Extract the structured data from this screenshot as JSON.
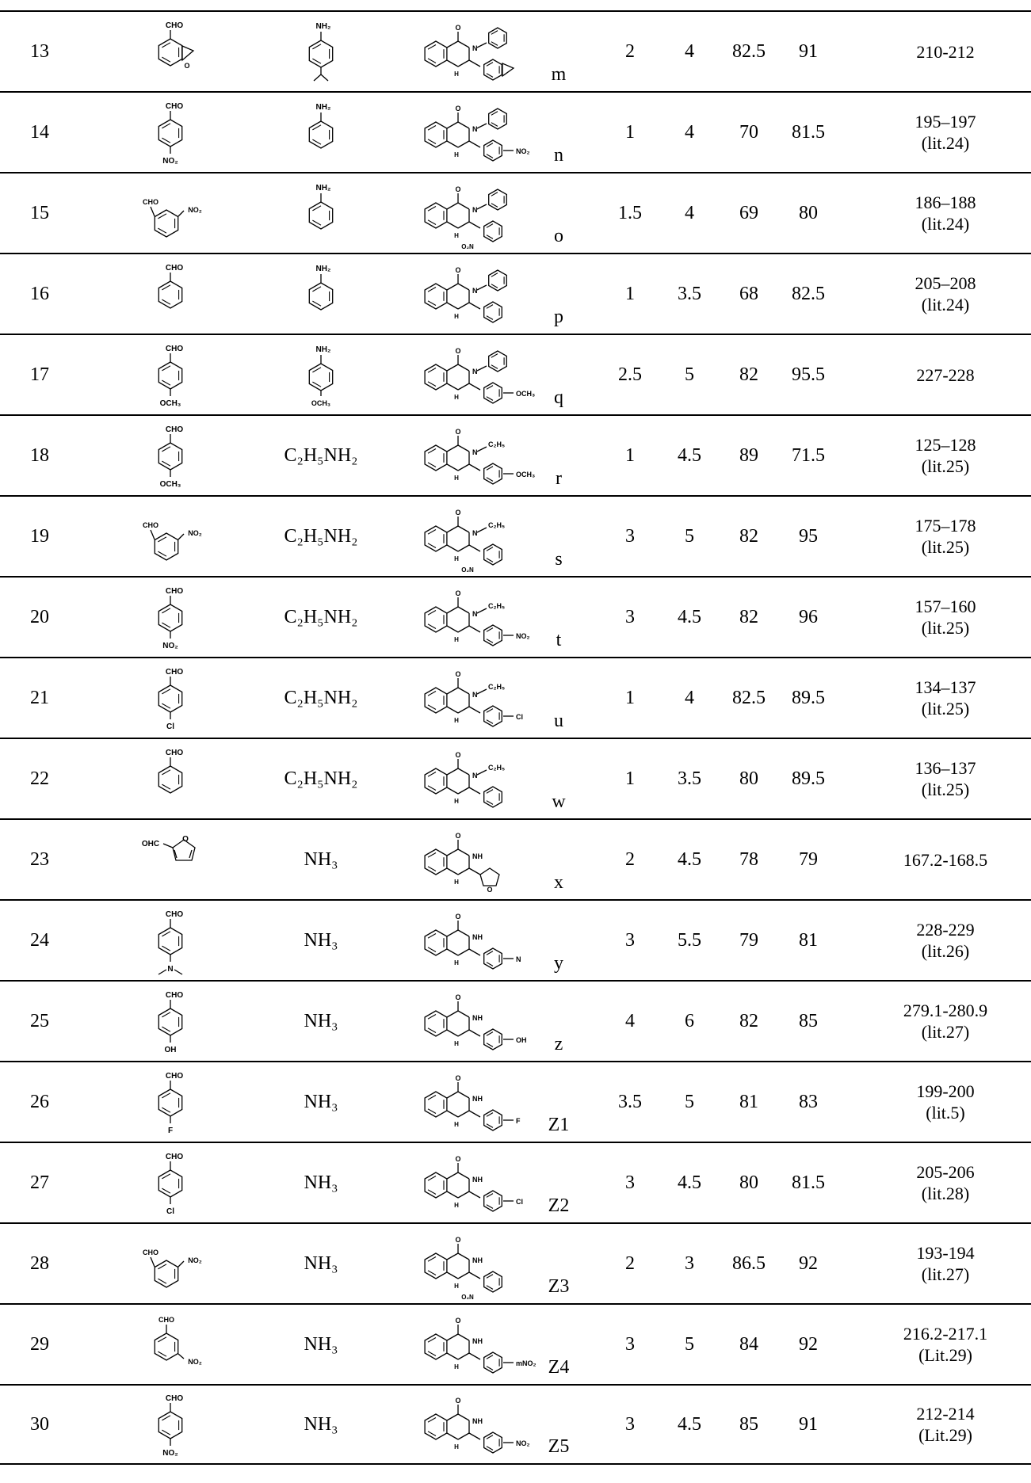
{
  "rows": [
    {
      "no": "13",
      "amine": "",
      "label": "m",
      "t1": "2",
      "t2": "4",
      "y1": "82.5",
      "y2": "91",
      "mp": "210-212",
      "lit": "",
      "ald_sub": "mdo",
      "ami_kind": "ipr",
      "prod_kind": "N-aryl",
      "prod_sub": "mdo"
    },
    {
      "no": "14",
      "amine": "",
      "label": "n",
      "t1": "1",
      "t2": "4",
      "y1": "70",
      "y2": "81.5",
      "mp": "195–197",
      "lit": "(lit.24)",
      "ald_sub": "NO₂",
      "ami_kind": "ph",
      "prod_kind": "N-aryl",
      "prod_sub": "NO₂"
    },
    {
      "no": "15",
      "amine": "",
      "label": "o",
      "t1": "1.5",
      "t2": "4",
      "y1": "69",
      "y2": "80",
      "mp": "186–188",
      "lit": "(lit.24)",
      "ald_sub": "oNO₂",
      "ami_kind": "ph",
      "prod_kind": "N-aryl",
      "prod_sub": "oNO₂"
    },
    {
      "no": "16",
      "amine": "",
      "label": "p",
      "t1": "1",
      "t2": "3.5",
      "y1": "68",
      "y2": "82.5",
      "mp": "205–208",
      "lit": "(lit.24)",
      "ald_sub": "",
      "ami_kind": "ph",
      "prod_kind": "N-aryl",
      "prod_sub": ""
    },
    {
      "no": "17",
      "amine": "",
      "label": "q",
      "t1": "2.5",
      "t2": "5",
      "y1": "82",
      "y2": "95.5",
      "mp": "227-228",
      "lit": "",
      "ald_sub": "OCH₃",
      "ami_kind": "ome",
      "prod_kind": "N-aryl",
      "prod_sub": "OCH₃"
    },
    {
      "no": "18",
      "amine": "C₂H₅NH₂",
      "label": "r",
      "t1": "1",
      "t2": "4.5",
      "y1": "89",
      "y2": "71.5",
      "mp": "125–128",
      "lit": "(lit.25)",
      "ald_sub": "OCH₃",
      "ami_kind": "",
      "prod_kind": "N-ethyl",
      "prod_sub": "OCH₃"
    },
    {
      "no": "19",
      "amine": "C₂H₅NH₂",
      "label": "s",
      "t1": "3",
      "t2": "5",
      "y1": "82",
      "y2": "95",
      "mp": "175–178",
      "lit": "(lit.25)",
      "ald_sub": "oNO₂",
      "ami_kind": "",
      "prod_kind": "N-ethyl",
      "prod_sub": "oNO₂"
    },
    {
      "no": "20",
      "amine": "C₂H₅NH₂",
      "label": "t",
      "t1": "3",
      "t2": "4.5",
      "y1": "82",
      "y2": "96",
      "mp": "157–160",
      "lit": "(lit.25)",
      "ald_sub": "NO₂",
      "ami_kind": "",
      "prod_kind": "N-ethyl",
      "prod_sub": "NO₂"
    },
    {
      "no": "21",
      "amine": "C₂H₅NH₂",
      "label": "u",
      "t1": "1",
      "t2": "4",
      "y1": "82.5",
      "y2": "89.5",
      "mp": "134–137",
      "lit": "(lit.25)",
      "ald_sub": "Cl",
      "ami_kind": "",
      "prod_kind": "N-ethyl",
      "prod_sub": "Cl"
    },
    {
      "no": "22",
      "amine": "C₂H₅NH₂",
      "label": "w",
      "t1": "1",
      "t2": "3.5",
      "y1": "80",
      "y2": "89.5",
      "mp": "136–137",
      "lit": "(lit.25)",
      "ald_sub": "",
      "ami_kind": "",
      "prod_kind": "N-ethyl",
      "prod_sub": ""
    },
    {
      "no": "23",
      "amine": "NH₃",
      "label": "x",
      "t1": "2",
      "t2": "4.5",
      "y1": "78",
      "y2": "79",
      "mp": "167.2-168.5",
      "lit": "",
      "ald_sub": "furyl",
      "ami_kind": "",
      "prod_kind": "NH",
      "prod_sub": "furyl"
    },
    {
      "no": "24",
      "amine": "NH₃",
      "label": "y",
      "t1": "3",
      "t2": "5.5",
      "y1": "79",
      "y2": "81",
      "mp": "228-229",
      "lit": "(lit.26)",
      "ald_sub": "NMe2",
      "ami_kind": "",
      "prod_kind": "NH",
      "prod_sub": "NMe2"
    },
    {
      "no": "25",
      "amine": "NH₃",
      "label": "z",
      "t1": "4",
      "t2": "6",
      "y1": "82",
      "y2": "85",
      "mp": "279.1-280.9",
      "lit": "(lit.27)",
      "ald_sub": "OH",
      "ami_kind": "",
      "prod_kind": "NH",
      "prod_sub": "OH"
    },
    {
      "no": "26",
      "amine": "NH₃",
      "label": "Z1",
      "t1": "3.5",
      "t2": "5",
      "y1": "81",
      "y2": "83",
      "mp": "199-200",
      "lit": "(lit.5)",
      "ald_sub": "F",
      "ami_kind": "",
      "prod_kind": "NH",
      "prod_sub": "F"
    },
    {
      "no": "27",
      "amine": "NH₃",
      "label": "Z2",
      "t1": "3",
      "t2": "4.5",
      "y1": "80",
      "y2": "81.5",
      "mp": "205-206",
      "lit": "(lit.28)",
      "ald_sub": "Cl",
      "ami_kind": "",
      "prod_kind": "NH",
      "prod_sub": "Cl"
    },
    {
      "no": "28",
      "amine": "NH₃",
      "label": "Z3",
      "t1": "2",
      "t2": "3",
      "y1": "86.5",
      "y2": "92",
      "mp": "193-194",
      "lit": "(lit.27)",
      "ald_sub": "oNO₂",
      "ami_kind": "",
      "prod_kind": "NH",
      "prod_sub": "oNO₂"
    },
    {
      "no": "29",
      "amine": "NH₃",
      "label": "Z4",
      "t1": "3",
      "t2": "5",
      "y1": "84",
      "y2": "92",
      "mp": "216.2-217.1",
      "lit": "(Lit.29)",
      "ald_sub": "mNO₂",
      "ami_kind": "",
      "prod_kind": "NH",
      "prod_sub": "mNO₂"
    },
    {
      "no": "30",
      "amine": "NH₃",
      "label": "Z5",
      "t1": "3",
      "t2": "4.5",
      "y1": "85",
      "y2": "91",
      "mp": "212-214",
      "lit": "(Lit.29)",
      "ald_sub": "NO₂",
      "ami_kind": "",
      "prod_kind": "NH",
      "prod_sub": "NO₂"
    }
  ],
  "chem": {
    "cho": "CHO",
    "nh2": "NH₂",
    "o": "O",
    "n": "N",
    "h": "H",
    "nh": "NH",
    "ohc": "OHC",
    "c2h5": "C₂H₅"
  }
}
